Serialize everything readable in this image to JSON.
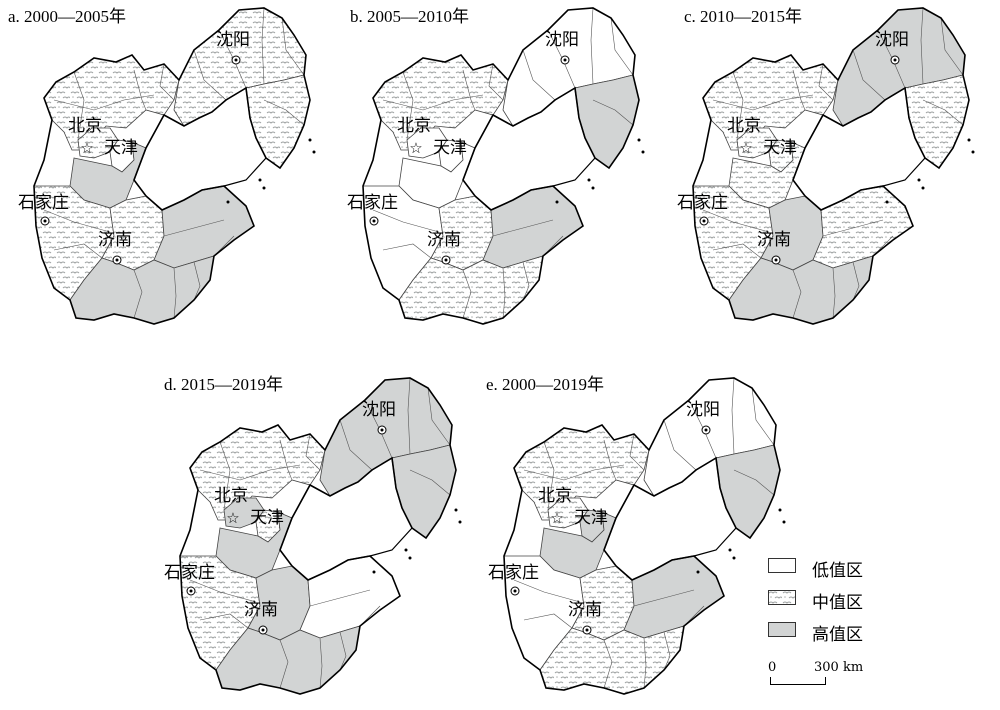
{
  "panels": [
    {
      "id": "a",
      "title": "a. 2000—2005年",
      "regions": {
        "north": "mid",
        "beijing": "mid",
        "tianjin": "low",
        "hebei_east": "high",
        "hebei_south": "mid",
        "liaoning": "mid",
        "liaodong": "mid",
        "shandong_west": "mid",
        "shandong_east": "high",
        "shandong_south": "high"
      }
    },
    {
      "id": "b",
      "title": "b. 2005—2010年",
      "regions": {
        "north": "mid",
        "beijing": "low",
        "tianjin": "low",
        "hebei_east": "low",
        "hebei_south": "low",
        "liaoning": "low",
        "liaodong": "high",
        "shandong_west": "mid",
        "shandong_east": "high",
        "shandong_south": "mid"
      }
    },
    {
      "id": "c",
      "title": "c. 2010—2015年",
      "regions": {
        "north": "mid",
        "beijing": "mid",
        "tianjin": "mid",
        "hebei_east": "mid",
        "hebei_south": "mid",
        "liaoning": "high",
        "liaodong": "mid",
        "shandong_west": "high",
        "shandong_east": "mid",
        "shandong_south": "high"
      }
    },
    {
      "id": "d",
      "title": "d. 2015—2019年",
      "regions": {
        "north": "mid",
        "beijing": "high",
        "tianjin": "mid",
        "hebei_east": "high",
        "hebei_south": "mid",
        "liaoning": "high",
        "liaodong": "high",
        "shandong_west": "high",
        "shandong_east": "low",
        "shandong_south": "high"
      }
    },
    {
      "id": "e",
      "title": "e. 2000—2019年",
      "regions": {
        "north": "mid",
        "beijing": "mid",
        "tianjin": "high",
        "hebei_east": "high",
        "hebei_south": "low",
        "liaoning": "low",
        "liaodong": "high",
        "shandong_west": "mid",
        "shandong_east": "high",
        "shandong_south": "mid"
      }
    }
  ],
  "cities": {
    "shenyang": "沈阳",
    "beijing": "北京",
    "tianjin": "天津",
    "shijiazhuang": "石家庄",
    "jinan": "济南"
  },
  "legend": [
    {
      "key": "low",
      "label": "低值区"
    },
    {
      "key": "mid",
      "label": "中值区"
    },
    {
      "key": "high",
      "label": "高值区"
    }
  ],
  "scale_bar": {
    "start": "0",
    "end": "300 km"
  },
  "colors": {
    "low": "#ffffff",
    "mid": "#eef0f0",
    "high": "#d2d4d4",
    "border": "#000000",
    "district": "#555555"
  }
}
